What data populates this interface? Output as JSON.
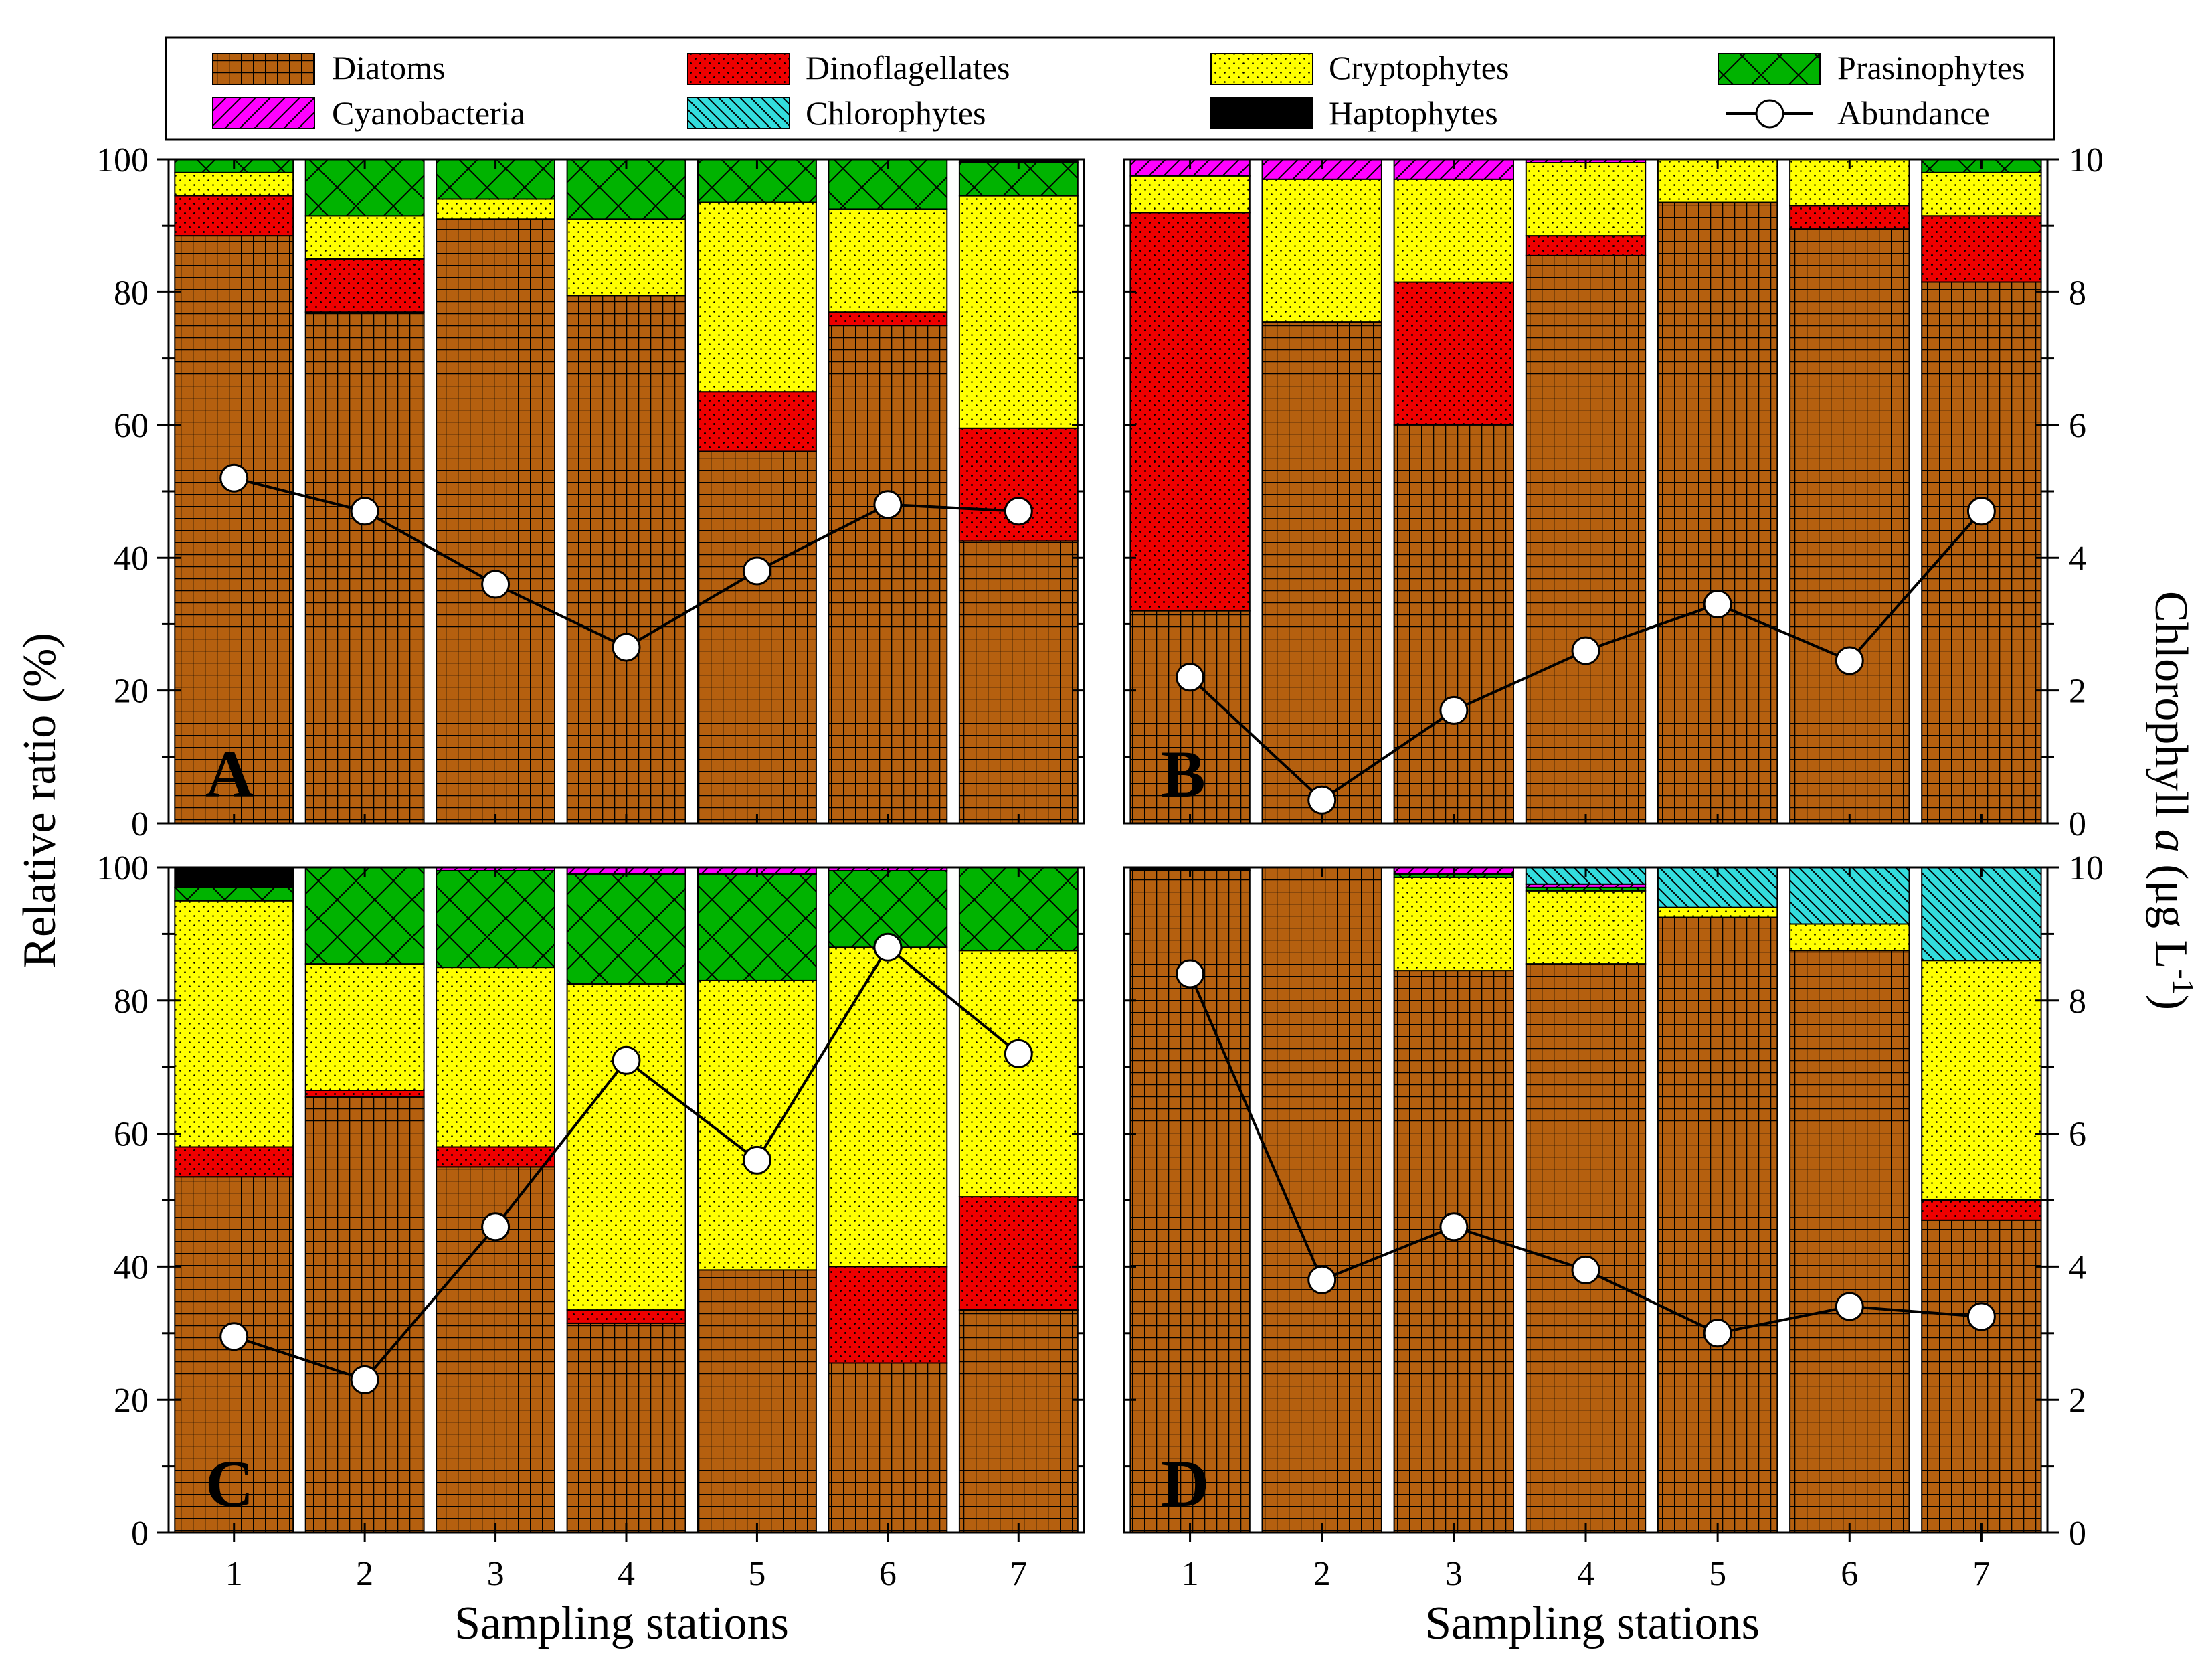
{
  "chart_data": {
    "type": "bar",
    "subtype": "stacked-percent-with-line",
    "xlabel": "Sampling stations",
    "ylabel_left": "Relative ratio (%)",
    "ylabel_right": {
      "prefix": "Chlorophyll ",
      "italic": "a",
      "unit_open": " (μg L",
      "exp": "-1",
      "unit_close": ")"
    },
    "categories": [
      "1",
      "2",
      "3",
      "4",
      "5",
      "6",
      "7"
    ],
    "ylim_left": [
      0,
      100
    ],
    "ylim_right": [
      0,
      10
    ],
    "yticks_left": [
      "0",
      "20",
      "40",
      "60",
      "80",
      "100"
    ],
    "yticks_right": [
      "0",
      "2",
      "4",
      "6",
      "8",
      "10"
    ],
    "legend": [
      "Diatoms",
      "Dinoflagellates",
      "Cryptophytes",
      "Prasinophytes",
      "Cyanobacteria",
      "Chlorophytes",
      "Haptophytes",
      "Abundance"
    ],
    "groups": [
      {
        "key": "Diatoms",
        "color": "#b5600f",
        "pattern": "grid"
      },
      {
        "key": "Dinoflagellates",
        "color": "#ee0000",
        "pattern": "dots"
      },
      {
        "key": "Cryptophytes",
        "color": "#ffff00",
        "pattern": "dots"
      },
      {
        "key": "Prasinophytes",
        "color": "#00b300",
        "pattern": "crosshatch"
      },
      {
        "key": "Cyanobacteria",
        "color": "#ff00ff",
        "pattern": "diag"
      },
      {
        "key": "Chlorophytes",
        "color": "#33dddd",
        "pattern": "diagrev"
      },
      {
        "key": "Haptophytes",
        "color": "#000000",
        "pattern": "none"
      }
    ],
    "panels": [
      {
        "label": "A",
        "series": [
          {
            "name": "Diatoms",
            "values": [
              88.5,
              77,
              91,
              79.5,
              56,
              75,
              42.5
            ]
          },
          {
            "name": "Dinoflagellates",
            "values": [
              6,
              8,
              0,
              0,
              9,
              2,
              17
            ]
          },
          {
            "name": "Cryptophytes",
            "values": [
              3.5,
              6.5,
              3,
              11.5,
              28.5,
              15.5,
              35
            ]
          },
          {
            "name": "Prasinophytes",
            "values": [
              2,
              8.5,
              6,
              9,
              6.5,
              7.5,
              5
            ]
          },
          {
            "name": "Cyanobacteria",
            "values": [
              0,
              0,
              0,
              0,
              0,
              0,
              0
            ]
          },
          {
            "name": "Chlorophytes",
            "values": [
              0,
              0,
              0,
              0,
              0,
              0,
              0
            ]
          },
          {
            "name": "Haptophytes",
            "values": [
              0,
              0,
              0,
              0,
              0,
              0,
              0.5
            ]
          }
        ],
        "chlorophyll": [
          5.2,
          4.7,
          3.6,
          2.65,
          3.8,
          4.8,
          4.7
        ]
      },
      {
        "label": "B",
        "series": [
          {
            "name": "Diatoms",
            "values": [
              32,
              75.5,
              60,
              85.5,
              93.5,
              89.5,
              81.5
            ]
          },
          {
            "name": "Dinoflagellates",
            "values": [
              60,
              0,
              21.5,
              3,
              0,
              3.5,
              10
            ]
          },
          {
            "name": "Cryptophytes",
            "values": [
              5.5,
              21.5,
              15.5,
              11,
              6.5,
              7,
              6.5
            ]
          },
          {
            "name": "Prasinophytes",
            "values": [
              0,
              0,
              0,
              0,
              0,
              0,
              2
            ]
          },
          {
            "name": "Cyanobacteria",
            "values": [
              2.5,
              3,
              3,
              0.5,
              0,
              0,
              0
            ]
          },
          {
            "name": "Chlorophytes",
            "values": [
              0,
              0,
              0,
              0,
              0,
              0,
              0
            ]
          },
          {
            "name": "Haptophytes",
            "values": [
              0,
              0,
              0,
              0,
              0,
              0,
              0
            ]
          }
        ],
        "chlorophyll": [
          2.2,
          0.35,
          1.7,
          2.6,
          3.3,
          2.45,
          4.7
        ]
      },
      {
        "label": "C",
        "series": [
          {
            "name": "Diatoms",
            "values": [
              53.5,
              65.5,
              55,
              31.5,
              39.5,
              25.5,
              33.5
            ]
          },
          {
            "name": "Dinoflagellates",
            "values": [
              4.5,
              1,
              3,
              2,
              0,
              14.5,
              17
            ]
          },
          {
            "name": "Cryptophytes",
            "values": [
              37,
              19,
              27,
              49,
              43.5,
              48,
              37
            ]
          },
          {
            "name": "Prasinophytes",
            "values": [
              2,
              14.5,
              14.5,
              16.5,
              16,
              11.5,
              12.5
            ]
          },
          {
            "name": "Cyanobacteria",
            "values": [
              0,
              0,
              0.5,
              1,
              1,
              0.5,
              0
            ]
          },
          {
            "name": "Chlorophytes",
            "values": [
              0,
              0,
              0,
              0,
              0,
              0,
              0
            ]
          },
          {
            "name": "Haptophytes",
            "values": [
              3,
              0,
              0,
              0,
              0,
              0,
              0
            ]
          }
        ],
        "chlorophyll": [
          2.95,
          2.3,
          4.6,
          7.1,
          5.6,
          8.8,
          7.2
        ]
      },
      {
        "label": "D",
        "series": [
          {
            "name": "Diatoms",
            "values": [
              99.5,
              100,
              84.5,
              85.5,
              92.5,
              87.5,
              47
            ]
          },
          {
            "name": "Dinoflagellates",
            "values": [
              0,
              0,
              0,
              0,
              0,
              0,
              3
            ]
          },
          {
            "name": "Cryptophytes",
            "values": [
              0,
              0,
              14,
              11,
              1.5,
              4,
              36
            ]
          },
          {
            "name": "Prasinophytes",
            "values": [
              0,
              0,
              0.5,
              0.5,
              0,
              0,
              0
            ]
          },
          {
            "name": "Cyanobacteria",
            "values": [
              0,
              0,
              1,
              0.5,
              0,
              0,
              0
            ]
          },
          {
            "name": "Chlorophytes",
            "values": [
              0,
              0,
              0,
              2.5,
              6,
              8.5,
              14
            ]
          },
          {
            "name": "Haptophytes",
            "values": [
              0.5,
              0,
              0,
              0,
              0,
              0,
              0
            ]
          }
        ],
        "chlorophyll": [
          8.4,
          3.8,
          4.6,
          3.95,
          3.0,
          3.4,
          3.25
        ]
      }
    ]
  }
}
